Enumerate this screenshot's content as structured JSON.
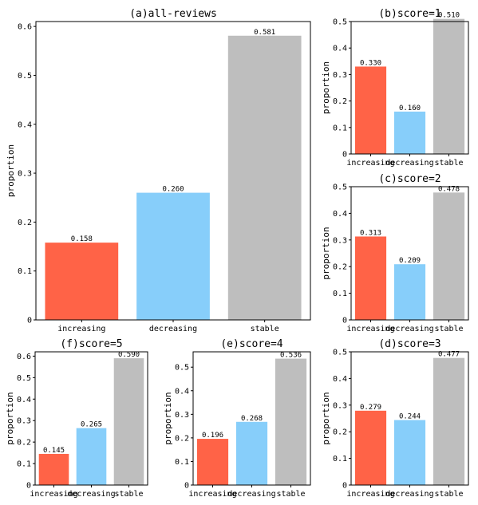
{
  "colors": {
    "increasing": "#ff6347",
    "decreasing": "#87cefa",
    "stable": "#bebebe"
  },
  "chart_data": [
    {
      "id": "a",
      "type": "bar",
      "title": "(a)all-reviews",
      "ylabel": "proportion",
      "categories": [
        "increasing",
        "decreasing",
        "stable"
      ],
      "values": [
        0.158,
        0.26,
        0.581
      ],
      "value_labels": [
        "0.158",
        "0.260",
        "0.581"
      ],
      "ylim": [
        0,
        0.61
      ],
      "yticks": [
        0,
        0.1,
        0.2,
        0.3,
        0.4,
        0.5,
        0.6
      ],
      "ytick_labels": [
        "0",
        "0.1",
        "0.2",
        "0.3",
        "0.4",
        "0.5",
        "0.6"
      ]
    },
    {
      "id": "b",
      "type": "bar",
      "title": "(b)score=1",
      "ylabel": "proportion",
      "categories": [
        "increasing",
        "decreasing",
        "stable"
      ],
      "values": [
        0.33,
        0.16,
        0.51
      ],
      "value_labels": [
        "0.330",
        "0.160",
        "0.510"
      ],
      "ylim": [
        0,
        0.5
      ],
      "yticks": [
        0,
        0.1,
        0.2,
        0.3,
        0.4,
        0.5
      ],
      "ytick_labels": [
        "0",
        "0.1",
        "0.2",
        "0.3",
        "0.4",
        "0.5"
      ]
    },
    {
      "id": "c",
      "type": "bar",
      "title": "(c)score=2",
      "ylabel": "proportion",
      "categories": [
        "increasing",
        "decreasing",
        "stable"
      ],
      "values": [
        0.313,
        0.209,
        0.478
      ],
      "value_labels": [
        "0.313",
        "0.209",
        "0.478"
      ],
      "ylim": [
        0,
        0.5
      ],
      "yticks": [
        0,
        0.1,
        0.2,
        0.3,
        0.4,
        0.5
      ],
      "ytick_labels": [
        "0",
        "0.1",
        "0.2",
        "0.3",
        "0.4",
        "0.5"
      ]
    },
    {
      "id": "f",
      "type": "bar",
      "title": "(f)score=5",
      "ylabel": "proportion",
      "categories": [
        "increasing",
        "decreasing",
        "stable"
      ],
      "values": [
        0.145,
        0.265,
        0.59
      ],
      "value_labels": [
        "0.145",
        "0.265",
        "0.590"
      ],
      "ylim": [
        0,
        0.62
      ],
      "yticks": [
        0,
        0.1,
        0.2,
        0.3,
        0.4,
        0.5,
        0.6
      ],
      "ytick_labels": [
        "0",
        "0.1",
        "0.2",
        "0.3",
        "0.4",
        "0.5",
        "0.6"
      ]
    },
    {
      "id": "e",
      "type": "bar",
      "title": "(e)score=4",
      "ylabel": "proportion",
      "categories": [
        "increasing",
        "decreasing",
        "stable"
      ],
      "values": [
        0.196,
        0.268,
        0.536
      ],
      "value_labels": [
        "0.196",
        "0.268",
        "0.536"
      ],
      "ylim": [
        0,
        0.565
      ],
      "yticks": [
        0,
        0.1,
        0.2,
        0.3,
        0.4,
        0.5
      ],
      "ytick_labels": [
        "0",
        "0.1",
        "0.2",
        "0.3",
        "0.4",
        "0.5"
      ]
    },
    {
      "id": "d",
      "type": "bar",
      "title": "(d)score=3",
      "ylabel": "proportion",
      "categories": [
        "increasing",
        "decreasing",
        "stable"
      ],
      "values": [
        0.279,
        0.244,
        0.477
      ],
      "value_labels": [
        "0.279",
        "0.244",
        "0.477"
      ],
      "ylim": [
        0,
        0.5
      ],
      "yticks": [
        0,
        0.1,
        0.2,
        0.3,
        0.4,
        0.5
      ],
      "ytick_labels": [
        "0",
        "0.1",
        "0.2",
        "0.3",
        "0.4",
        "0.5"
      ]
    }
  ]
}
